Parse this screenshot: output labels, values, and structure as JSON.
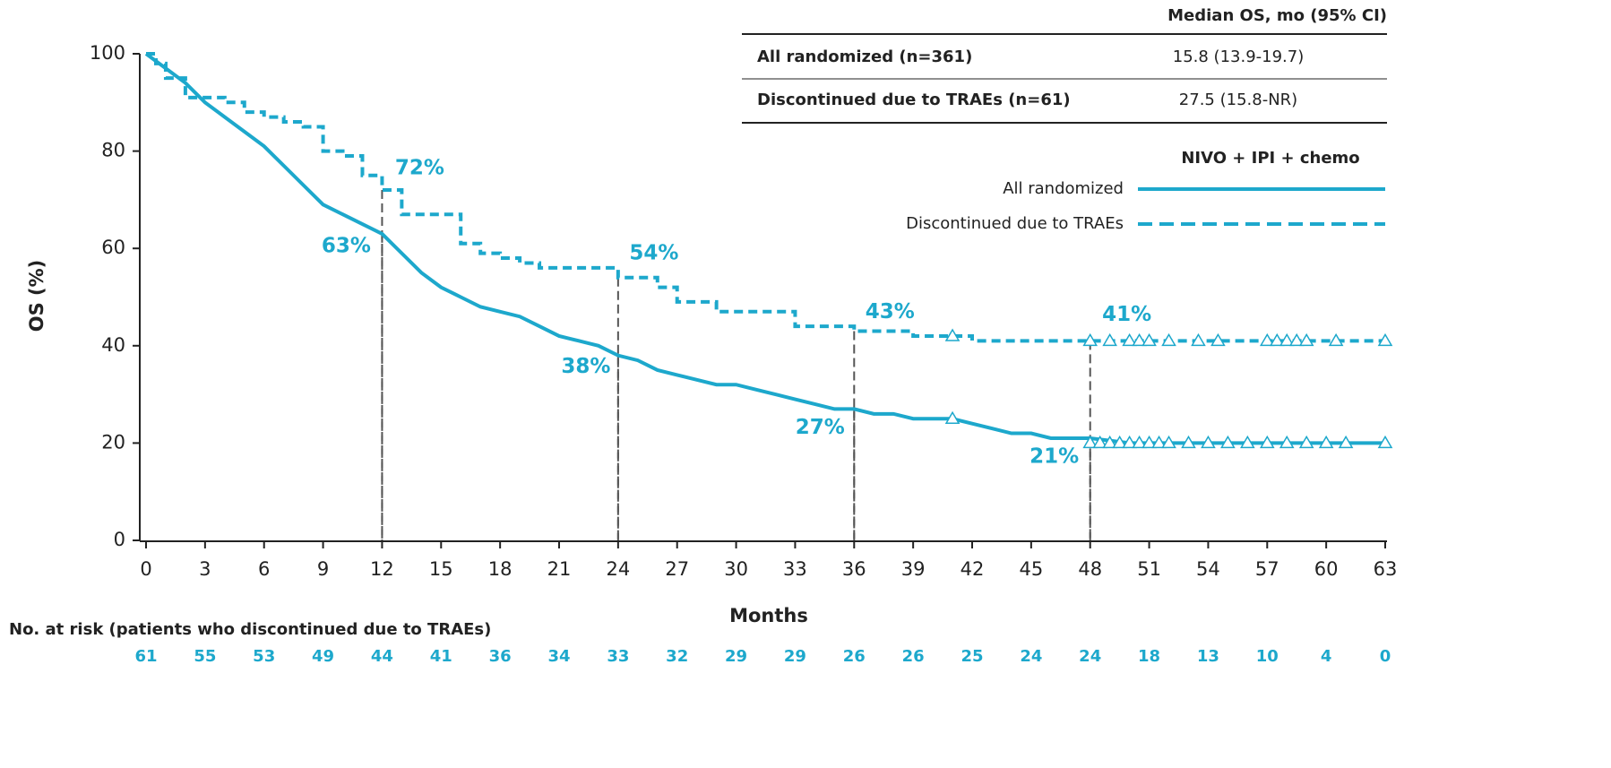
{
  "chart_data": {
    "type": "km",
    "xlabel": "Months",
    "ylabel": "OS (%)",
    "xlim": [
      0,
      63
    ],
    "ylim": [
      0,
      100
    ],
    "xticks": [
      0,
      3,
      6,
      9,
      12,
      15,
      18,
      21,
      24,
      27,
      30,
      33,
      36,
      39,
      42,
      45,
      48,
      51,
      54,
      57,
      60,
      63
    ],
    "yticks": [
      0,
      20,
      40,
      60,
      80,
      100
    ],
    "median_table": {
      "header": "Median OS, mo (95% CI)",
      "rows": [
        [
          "All randomized (n=361)",
          "15.8 (13.9-19.7)"
        ],
        [
          "Discontinued due to TRAEs (n=61)",
          "27.5 (15.8-NR)"
        ]
      ]
    },
    "legend_title": "NIVO + IPI + chemo",
    "series": [
      {
        "name": "All randomized",
        "color": "#1da8cc",
        "dash": false,
        "x": [
          0,
          1,
          2,
          3,
          4,
          5,
          6,
          7,
          8,
          9,
          10,
          11,
          12,
          13,
          14,
          15,
          16,
          17,
          18,
          19,
          20,
          21,
          22,
          23,
          24,
          25,
          26,
          27,
          28,
          29,
          30,
          31,
          32,
          33,
          34,
          35,
          36,
          37,
          38,
          39,
          40,
          41,
          42,
          43,
          44,
          45,
          46,
          47,
          48,
          50,
          52,
          54,
          56,
          58,
          60,
          62,
          63
        ],
        "values": [
          100,
          97,
          94,
          90,
          87,
          84,
          81,
          77,
          73,
          69,
          67,
          65,
          63,
          59,
          55,
          52,
          50,
          48,
          47,
          46,
          44,
          42,
          41,
          40,
          38,
          37,
          35,
          34,
          33,
          32,
          32,
          31,
          30,
          29,
          28,
          27,
          27,
          26,
          26,
          25,
          25,
          25,
          24,
          23,
          22,
          22,
          21,
          21,
          21,
          20,
          20,
          20,
          20,
          20,
          20,
          20,
          20
        ],
        "censor_x": [
          41,
          48,
          48.5,
          49,
          49.5,
          50,
          50.5,
          51,
          51.5,
          52,
          53,
          54,
          55,
          56,
          57,
          58,
          59,
          60,
          61,
          63
        ],
        "censor_y": [
          25,
          20,
          20,
          20,
          20,
          20,
          20,
          20,
          20,
          20,
          20,
          20,
          20,
          20,
          20,
          20,
          20,
          20,
          20,
          20
        ]
      },
      {
        "name": "Discontinued due to TRAEs",
        "color": "#1da8cc",
        "dash": true,
        "x": [
          0,
          0.5,
          0.5,
          1,
          1,
          2,
          2,
          4,
          4,
          5,
          5,
          6,
          6,
          7,
          7,
          8,
          8,
          9,
          9,
          10,
          10,
          11,
          11,
          12,
          12,
          13,
          13,
          16,
          16,
          17,
          17,
          18,
          18,
          19,
          19,
          20,
          20,
          24,
          24,
          26,
          26,
          27,
          27,
          29,
          29,
          33,
          33,
          36,
          36,
          39,
          39,
          42,
          42,
          63
        ],
        "values": [
          100,
          100,
          98,
          98,
          95,
          95,
          91,
          91,
          90,
          90,
          88,
          88,
          87,
          87,
          86,
          86,
          85,
          85,
          80,
          80,
          79,
          79,
          75,
          75,
          72,
          72,
          67,
          67,
          61,
          61,
          59,
          59,
          58,
          58,
          57,
          57,
          56,
          56,
          54,
          54,
          52,
          52,
          49,
          49,
          47,
          47,
          44,
          44,
          43,
          43,
          42,
          42,
          41,
          41
        ],
        "censor_x": [
          41,
          48,
          49,
          50,
          50.5,
          51,
          52,
          53.5,
          54.5,
          57,
          57.5,
          58,
          58.5,
          59,
          60.5,
          63
        ],
        "censor_y": [
          42,
          41,
          41,
          41,
          41,
          41,
          41,
          41,
          41,
          41,
          41,
          41,
          41,
          41,
          41,
          41
        ]
      }
    ],
    "annotations": [
      {
        "label": "72%",
        "x": 12,
        "value": 72
      },
      {
        "label": "63%",
        "x": 12,
        "value": 63
      },
      {
        "label": "54%",
        "x": 24,
        "value": 54
      },
      {
        "label": "38%",
        "x": 24,
        "value": 38
      },
      {
        "label": "43%",
        "x": 36,
        "value": 43
      },
      {
        "label": "27%",
        "x": 36,
        "value": 27
      },
      {
        "label": "41%",
        "x": 48,
        "value": 41
      },
      {
        "label": "21%",
        "x": 48,
        "value": 21
      }
    ],
    "at_risk_title": "No. at risk (patients who discontinued due to TRAEs)",
    "at_risk": [
      61,
      55,
      53,
      49,
      44,
      41,
      36,
      34,
      33,
      32,
      29,
      29,
      26,
      26,
      25,
      24,
      24,
      18,
      13,
      10,
      4,
      0
    ]
  }
}
